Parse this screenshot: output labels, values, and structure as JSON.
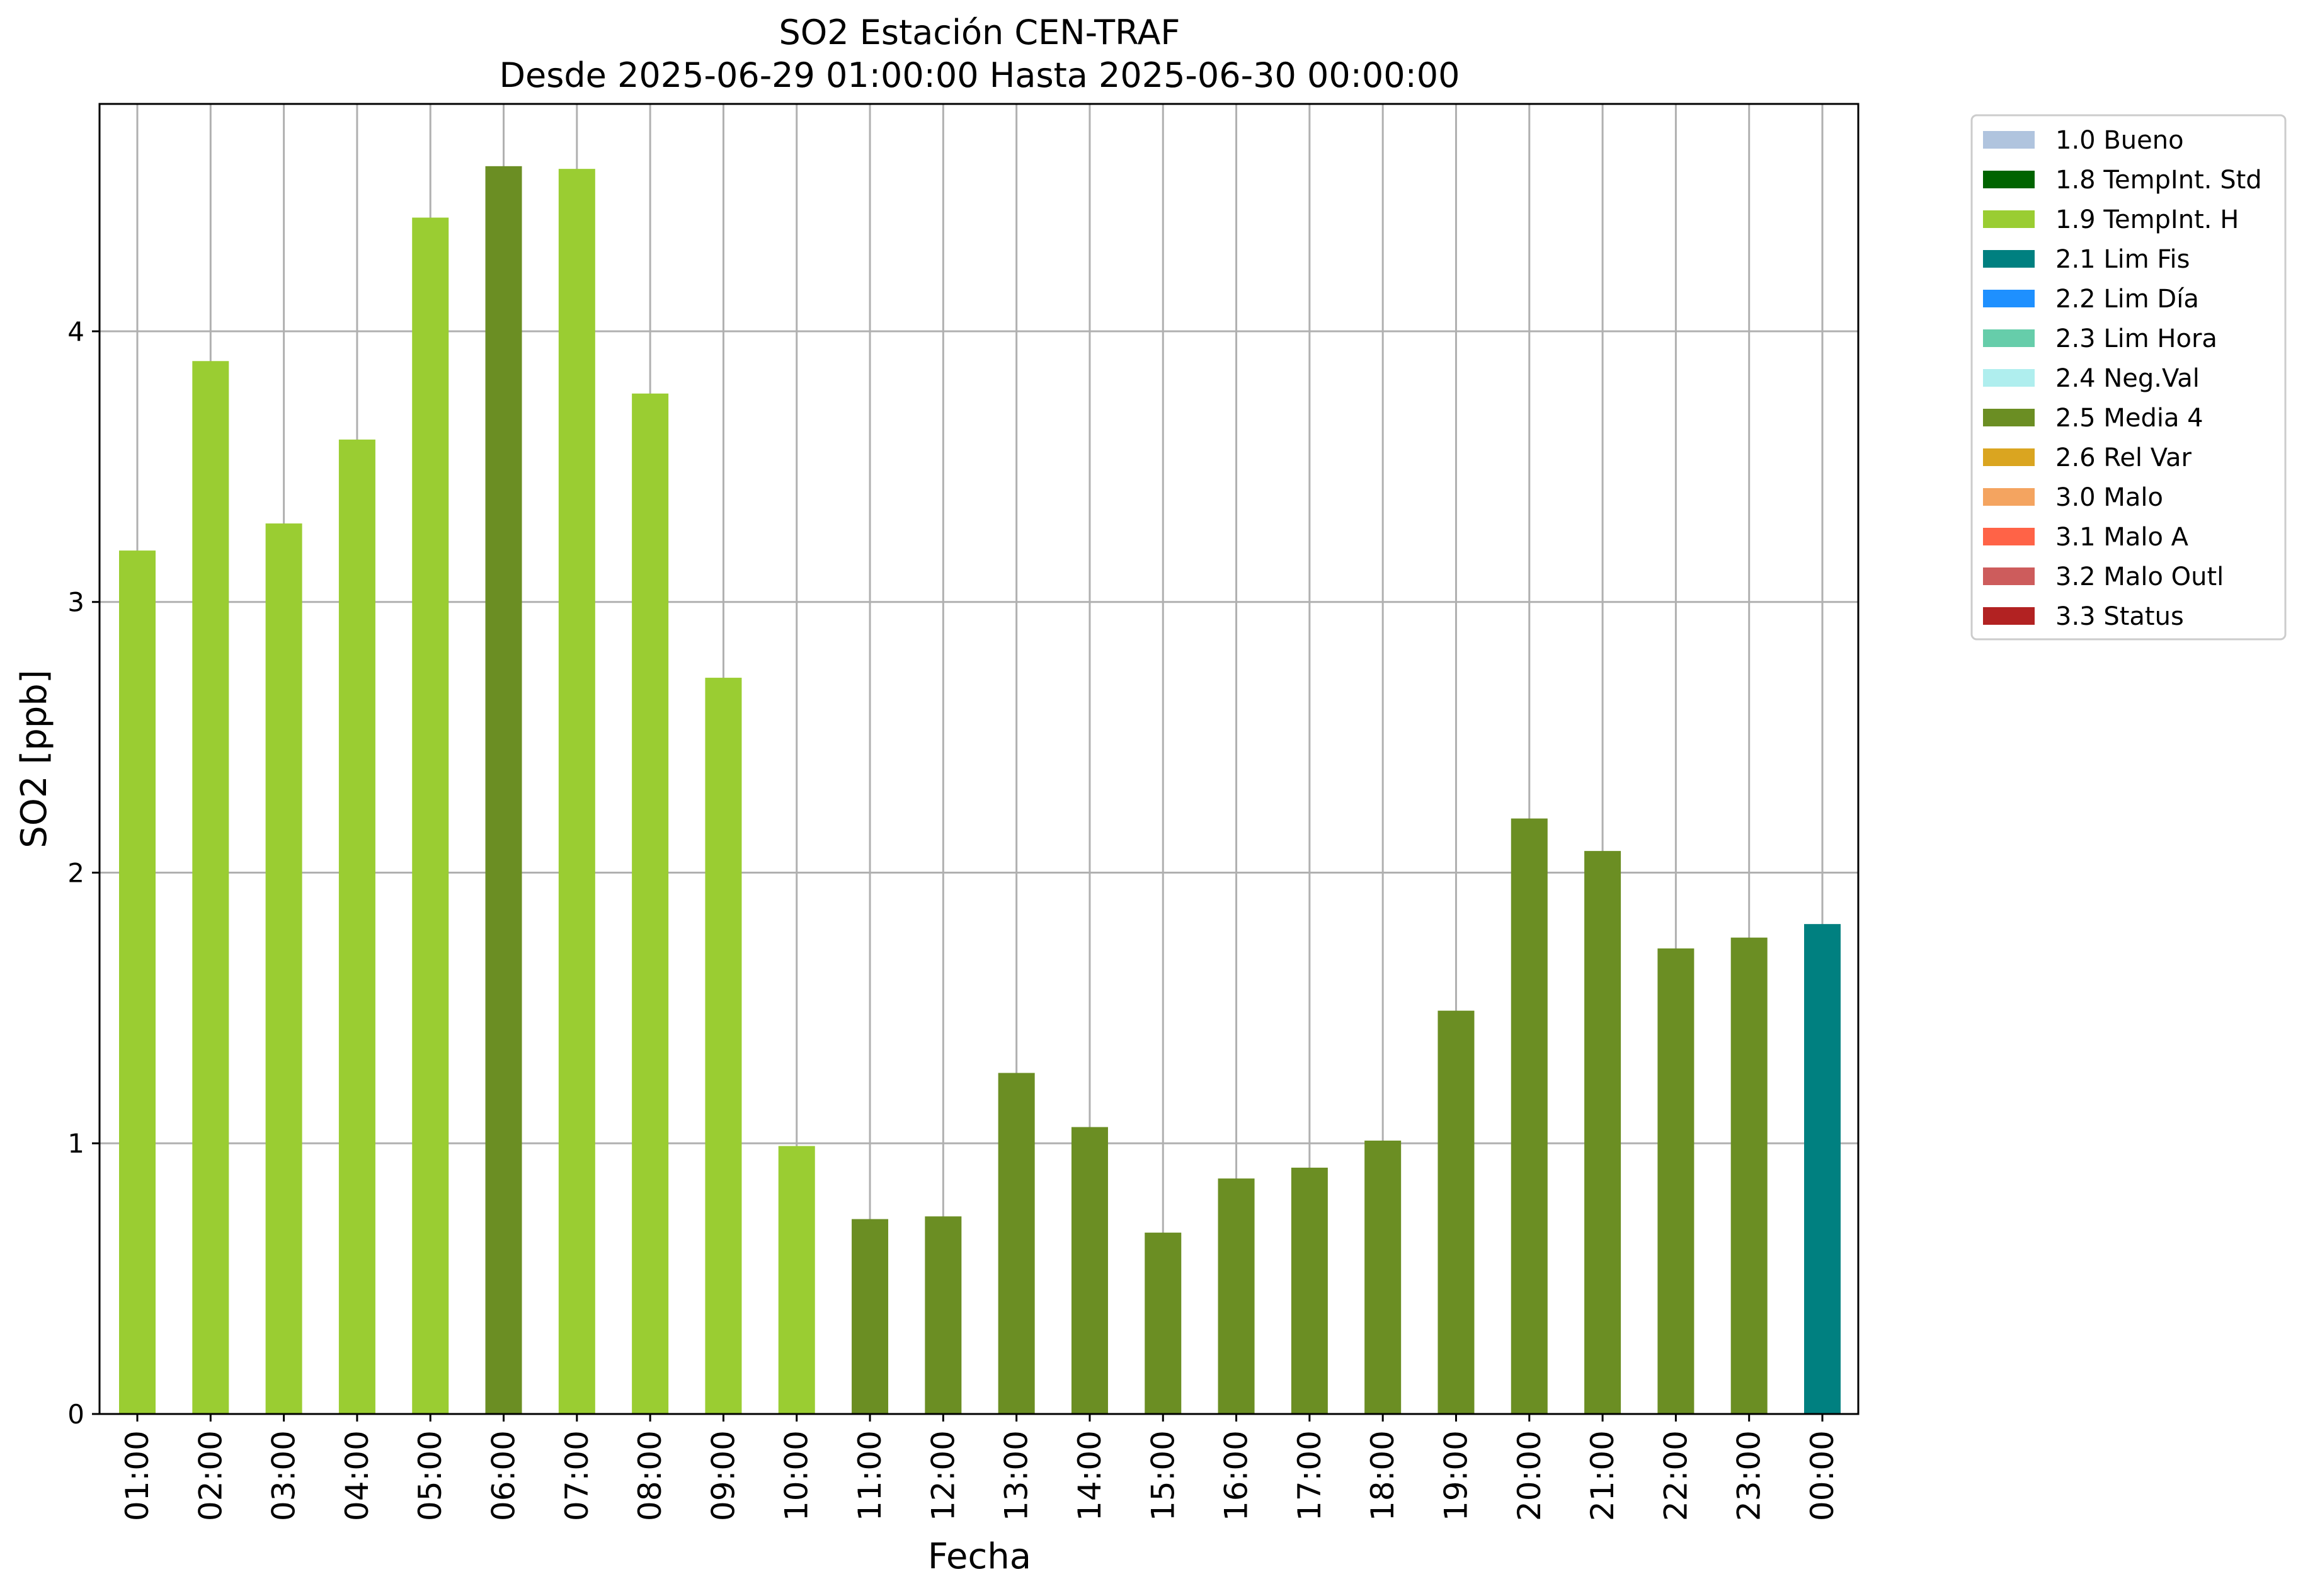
{
  "chart_data": {
    "type": "bar",
    "title": "SO2 Estación CEN-TRAF",
    "subtitle": "Desde 2025-06-29 01:00:00 Hasta 2025-06-30 00:00:00",
    "xlabel": "Fecha",
    "ylabel": "SO2 [ppb]",
    "ylim": [
      0,
      4.84
    ],
    "yticks": [
      "0",
      "1",
      "2",
      "3",
      "4"
    ],
    "grid": true,
    "legend_position": "outside-top-right",
    "categories": [
      "01:00",
      "02:00",
      "03:00",
      "04:00",
      "05:00",
      "06:00",
      "07:00",
      "08:00",
      "09:00",
      "10:00",
      "11:00",
      "12:00",
      "13:00",
      "14:00",
      "15:00",
      "16:00",
      "17:00",
      "18:00",
      "19:00",
      "20:00",
      "21:00",
      "22:00",
      "23:00",
      "00:00"
    ],
    "values": [
      3.19,
      3.89,
      3.29,
      3.6,
      4.42,
      4.61,
      4.6,
      3.77,
      2.72,
      0.99,
      0.72,
      0.73,
      1.26,
      1.06,
      0.67,
      0.87,
      0.91,
      1.01,
      1.49,
      2.2,
      2.08,
      1.72,
      1.76,
      1.81
    ],
    "flags": [
      "1.9 TempInt. H",
      "1.9 TempInt. H",
      "1.9 TempInt. H",
      "1.9 TempInt. H",
      "1.9 TempInt. H",
      "2.5 Media 4",
      "1.9 TempInt. H",
      "1.9 TempInt. H",
      "1.9 TempInt. H",
      "1.9 TempInt. H",
      "2.5 Media 4",
      "2.5 Media 4",
      "2.5 Media 4",
      "2.5 Media 4",
      "2.5 Media 4",
      "2.5 Media 4",
      "2.5 Media 4",
      "2.5 Media 4",
      "2.5 Media 4",
      "2.5 Media 4",
      "2.5 Media 4",
      "2.5 Media 4",
      "2.5 Media 4",
      "2.1 Lim Fis"
    ],
    "legend": [
      {
        "label": "1.0 Bueno",
        "color": "#b0c4de"
      },
      {
        "label": "1.8 TempInt. Std",
        "color": "#006400"
      },
      {
        "label": "1.9 TempInt. H",
        "color": "#9acd32"
      },
      {
        "label": "2.1 Lim Fis",
        "color": "#008080"
      },
      {
        "label": "2.2 Lim Día",
        "color": "#1e90ff"
      },
      {
        "label": "2.3 Lim Hora",
        "color": "#66cdaa"
      },
      {
        "label": "2.4 Neg.Val",
        "color": "#afeeee"
      },
      {
        "label": "2.5 Media 4",
        "color": "#6b8e23"
      },
      {
        "label": "2.6 Rel Var",
        "color": "#daa520"
      },
      {
        "label": "3.0 Malo",
        "color": "#f4a460"
      },
      {
        "label": "3.1 Malo A",
        "color": "#ff6347"
      },
      {
        "label": "3.2 Malo Outl",
        "color": "#cd5c5c"
      },
      {
        "label": "3.3 Status",
        "color": "#b22222"
      }
    ]
  }
}
